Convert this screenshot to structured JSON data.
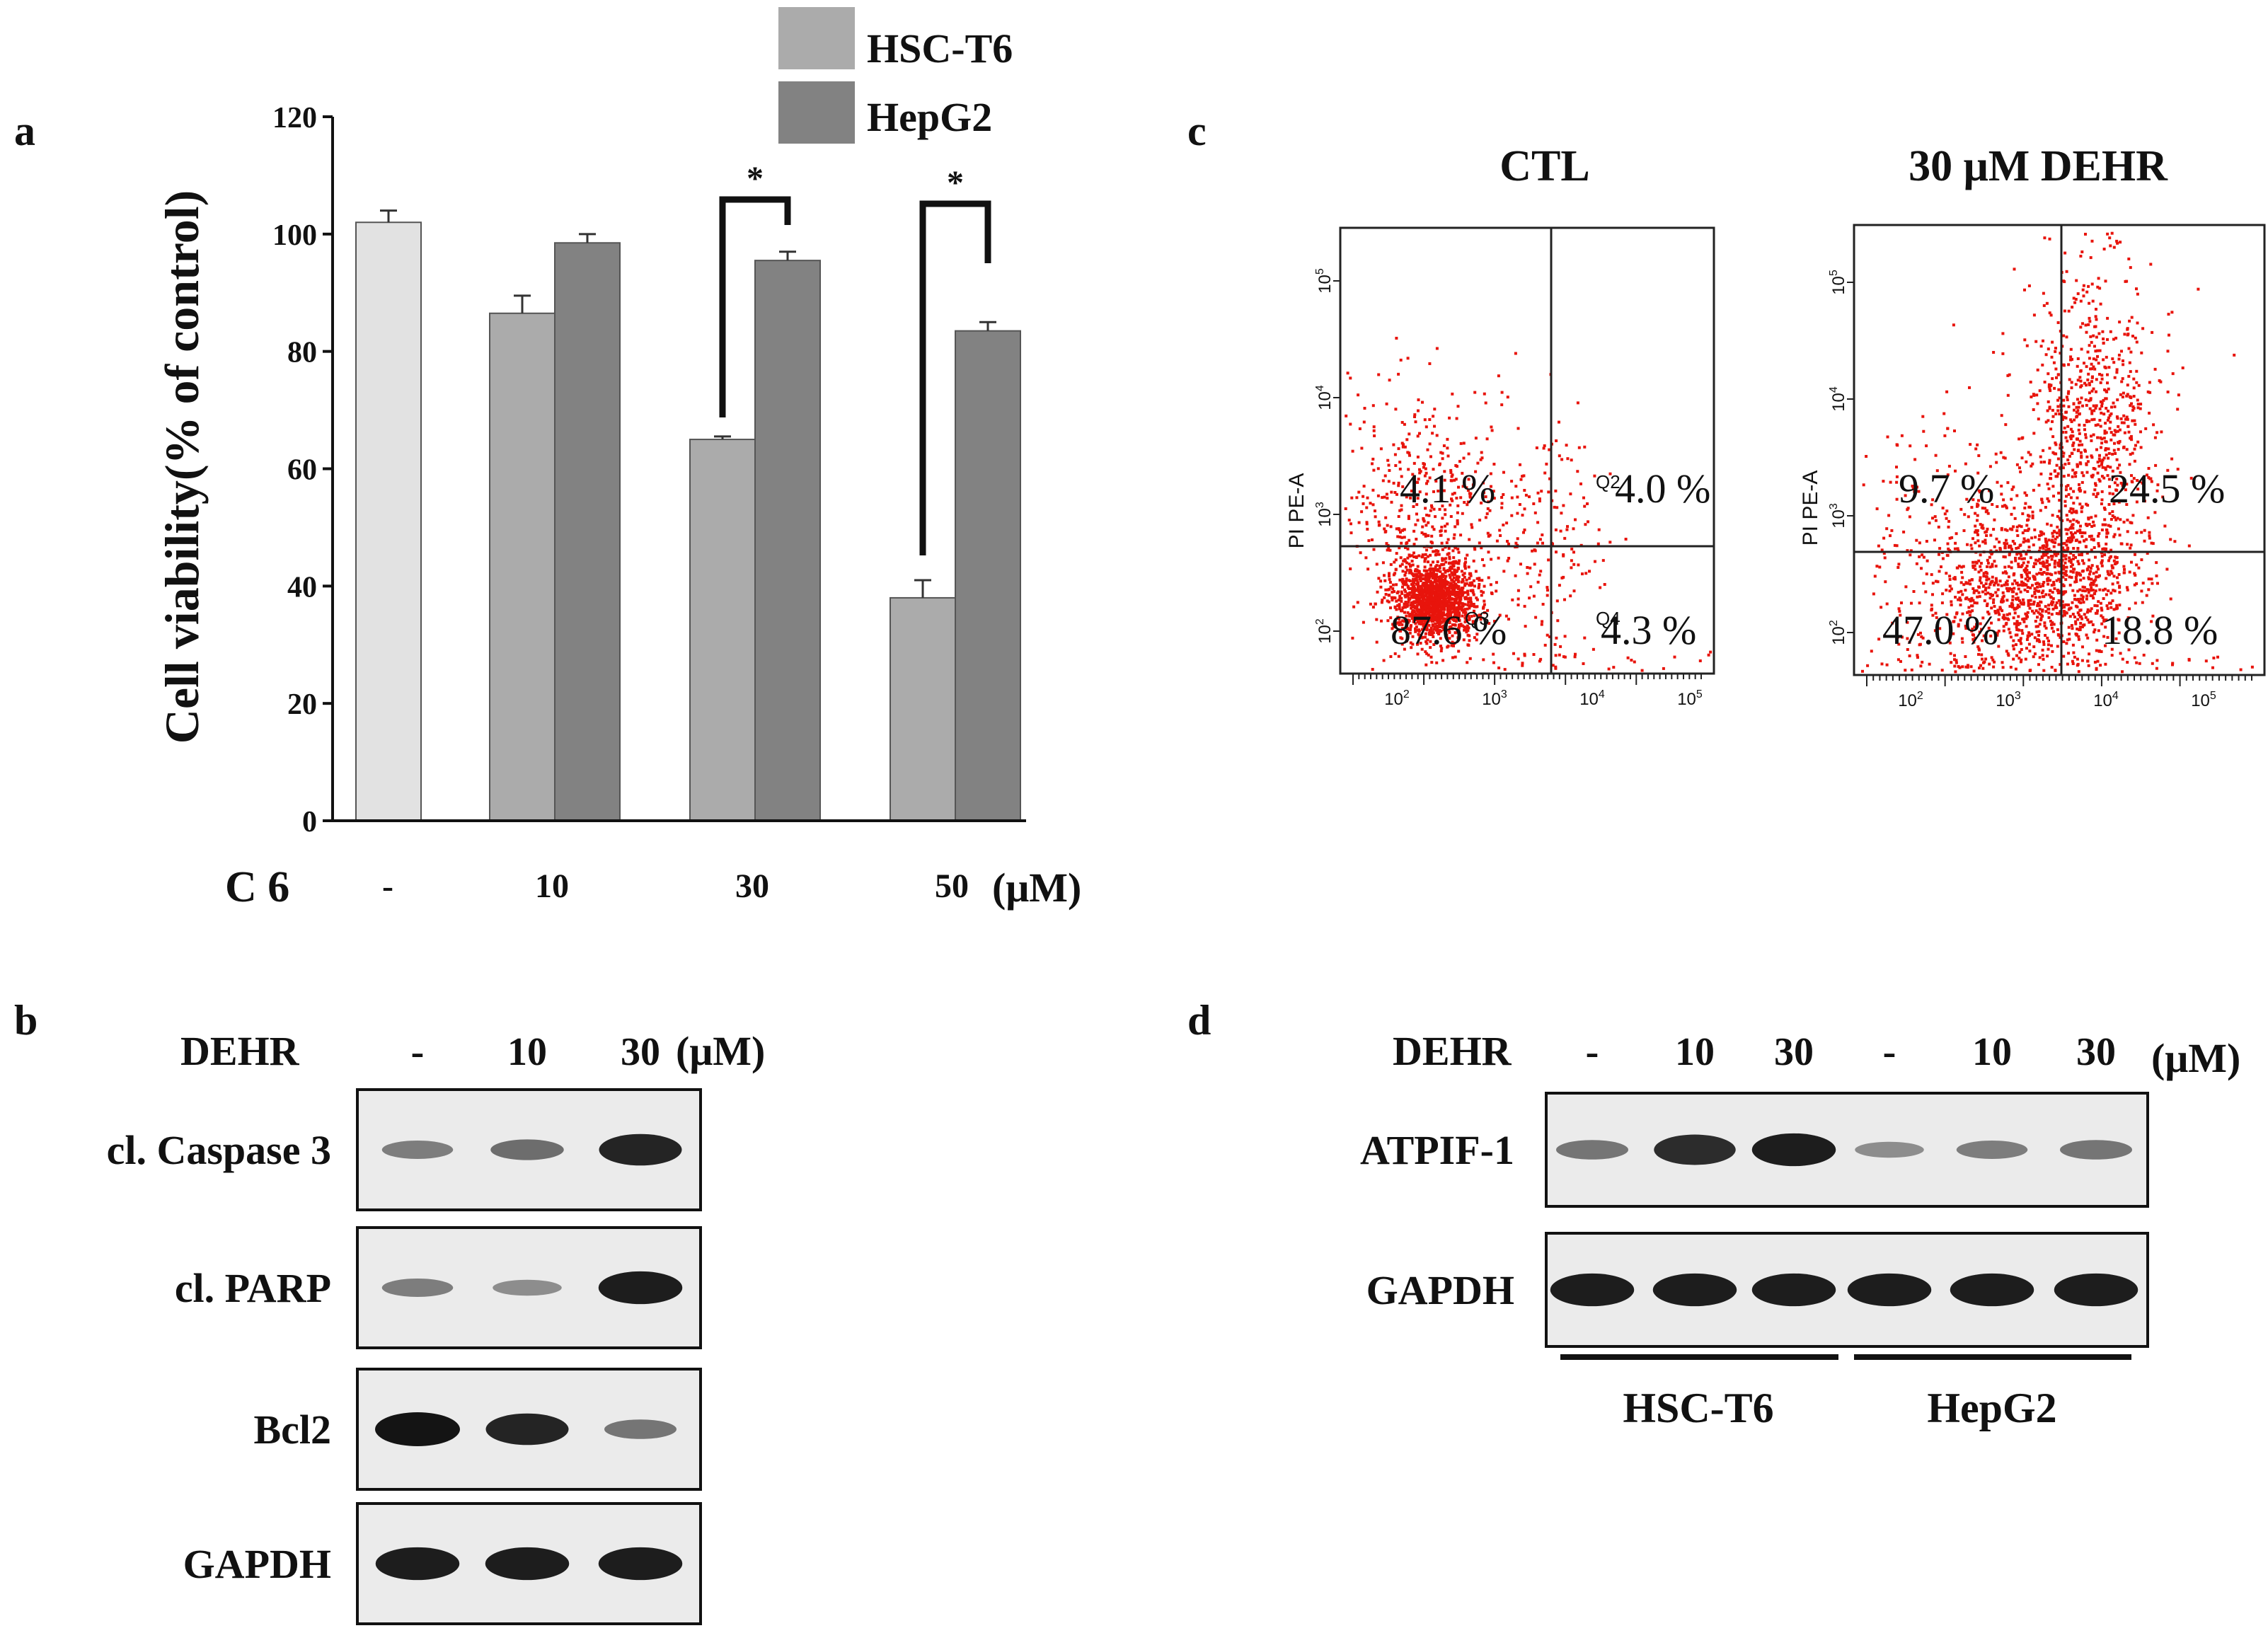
{
  "panels": {
    "a": "a",
    "b": "b",
    "c": "c",
    "d": "d"
  },
  "colors": {
    "control_bar": "#e2e2e2",
    "hsc_t6": "#ababab",
    "hepg2": "#828282",
    "dots": "#e8140c",
    "blot_bg": "#ebebeb",
    "band": "#141414"
  },
  "chart_data": [
    {
      "type": "bar",
      "ylabel": "Cell viability(% of control)",
      "xlabel": "C 6",
      "x_unit": "(μM)",
      "ylim": [
        0,
        120
      ],
      "yticks": [
        "0",
        "20",
        "40",
        "60",
        "80",
        "100",
        "120"
      ],
      "legend_position": "top-right",
      "grid": false,
      "control": {
        "category": "-",
        "value": 102,
        "error": 2
      },
      "categories": [
        "10",
        "30",
        "50"
      ],
      "series": [
        {
          "name": "HSC-T6",
          "values": [
            86.5,
            65,
            38
          ],
          "errors": [
            3,
            0.5,
            3
          ]
        },
        {
          "name": "HepG2",
          "values": [
            98.5,
            95.5,
            83.5
          ],
          "errors": [
            1.5,
            1.5,
            1.5
          ]
        }
      ],
      "significance": [
        {
          "category": "30",
          "label": "*"
        },
        {
          "category": "50",
          "label": "*"
        }
      ]
    },
    {
      "type": "scatter",
      "plots": [
        {
          "title": "CTL",
          "y_axis_label": "PI PE-A",
          "quadrants": {
            "upper_left": "4.1 %",
            "upper_right": "4.0 %",
            "lower_left": "87.6 %",
            "lower_right": "4.3 %"
          },
          "gate_labels": [
            "Q2",
            "Q3",
            "Q4"
          ]
        },
        {
          "title": "30 μM DEHR",
          "y_axis_label": "PI PE-A",
          "quadrants": {
            "upper_left": "9.7 %",
            "upper_right": "24.5 %",
            "lower_left": "47.0 %",
            "lower_right": "18.8 %"
          },
          "gate_labels": []
        }
      ]
    }
  ],
  "blot_b": {
    "treatment": "DEHR",
    "lanes": [
      "-",
      "10",
      "30"
    ],
    "unit": "(μM)",
    "rows": [
      {
        "label": "cl. Caspase 3",
        "intensities": [
          0.35,
          0.45,
          0.9
        ]
      },
      {
        "label": "cl. PARP",
        "intensities": [
          0.35,
          0.25,
          0.95
        ]
      },
      {
        "label": "Bcl2",
        "intensities": [
          1.0,
          0.9,
          0.4
        ]
      },
      {
        "label": "GAPDH",
        "intensities": [
          0.95,
          0.95,
          0.95
        ]
      }
    ]
  },
  "blot_d": {
    "treatment": "DEHR",
    "lanes": [
      "-",
      "10",
      "30",
      "-",
      "10",
      "30"
    ],
    "unit": "(μM)",
    "rows": [
      {
        "label": "ATPIF-1",
        "intensities": [
          0.4,
          0.85,
          0.95,
          0.25,
          0.35,
          0.4
        ]
      },
      {
        "label": "GAPDH",
        "intensities": [
          0.95,
          0.95,
          0.95,
          0.95,
          0.95,
          0.95
        ]
      }
    ],
    "groups": [
      "HSC-T6",
      "HepG2"
    ]
  }
}
